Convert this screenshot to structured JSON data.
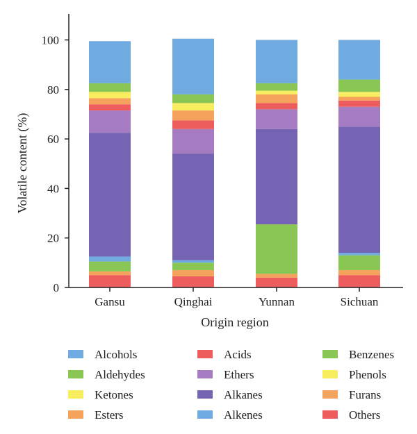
{
  "chart_data": {
    "type": "bar",
    "stacked": true,
    "categories": [
      "Gansu",
      "Qinghai",
      "Yunnan",
      "Sichuan"
    ],
    "xlabel": "Origin region",
    "ylabel": "Volatile content (%)",
    "ylim": [
      0,
      105
    ],
    "yticks": [
      0,
      20,
      40,
      60,
      80,
      100
    ],
    "legend_position": "bottom",
    "series": [
      {
        "name": "Others",
        "color": "#ee5d5d",
        "values": [
          5.0,
          4.5,
          4.0,
          5.0
        ]
      },
      {
        "name": "Furans",
        "color": "#f5a25c",
        "values": [
          1.5,
          2.5,
          1.5,
          2.0
        ]
      },
      {
        "name": "Benzenes",
        "color": "#8ac653",
        "values": [
          4.0,
          3.0,
          20.0,
          6.0
        ]
      },
      {
        "name": "Alkenes",
        "color": "#6fabe0",
        "values": [
          2.0,
          1.0,
          0.0,
          1.0
        ]
      },
      {
        "name": "Alkanes",
        "color": "#7563b3",
        "values": [
          50.0,
          43.0,
          38.5,
          51.0
        ]
      },
      {
        "name": "Ethers",
        "color": "#a57cc2",
        "values": [
          9.0,
          10.0,
          8.0,
          8.0
        ]
      },
      {
        "name": "Acids",
        "color": "#ee5d5d",
        "values": [
          2.5,
          3.5,
          2.5,
          2.5
        ]
      },
      {
        "name": "Esters",
        "color": "#f5a25c",
        "values": [
          2.5,
          4.0,
          3.5,
          1.5
        ]
      },
      {
        "name": "Ketones",
        "color": "#f8ec5f",
        "values": [
          2.5,
          2.5,
          1.0,
          1.5
        ]
      },
      {
        "name": "Phenols",
        "color": "#f8ec5f",
        "values": [
          0.0,
          0.5,
          0.5,
          0.5
        ]
      },
      {
        "name": "Aldehydes",
        "color": "#8ac653",
        "values": [
          3.5,
          3.5,
          3.0,
          5.0
        ]
      },
      {
        "name": "Alcohols",
        "color": "#6fabe0",
        "values": [
          17.0,
          22.5,
          17.5,
          16.0
        ]
      }
    ],
    "legend_order": [
      "Alcohols",
      "Acids",
      "Benzenes",
      "Aldehydes",
      "Ethers",
      "Phenols",
      "Ketones",
      "Alkanes",
      "Furans",
      "Esters",
      "Alkenes",
      "Others"
    ]
  }
}
